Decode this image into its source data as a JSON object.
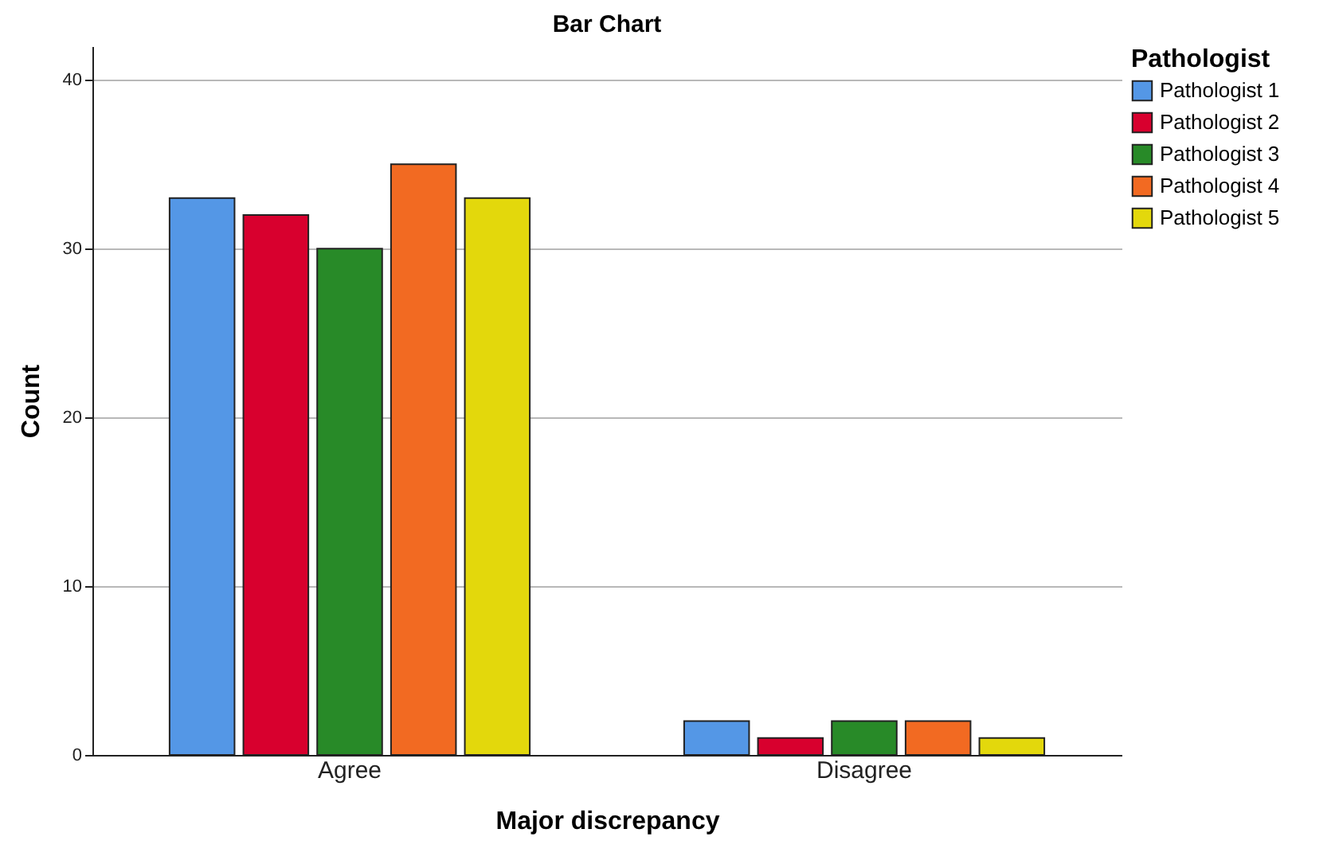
{
  "chart_data": {
    "type": "bar",
    "title": "Bar Chart",
    "xlabel": "Major discrepancy",
    "ylabel": "Count",
    "legend_title": "Pathologist",
    "categories": [
      "Agree",
      "Disagree"
    ],
    "series": [
      {
        "name": "Pathologist 1",
        "color": "#5497e6",
        "values": [
          33,
          2
        ]
      },
      {
        "name": "Pathologist 2",
        "color": "#d8002e",
        "values": [
          32,
          1
        ]
      },
      {
        "name": "Pathologist 3",
        "color": "#288a28",
        "values": [
          30,
          2
        ]
      },
      {
        "name": "Pathologist 4",
        "color": "#f26a22",
        "values": [
          35,
          2
        ]
      },
      {
        "name": "Pathologist 5",
        "color": "#e3d80c",
        "values": [
          33,
          1
        ]
      }
    ],
    "ylim": [
      0,
      42
    ],
    "yticks": [
      0,
      10,
      20,
      30,
      40
    ],
    "grid": "y",
    "legend": "top right"
  }
}
